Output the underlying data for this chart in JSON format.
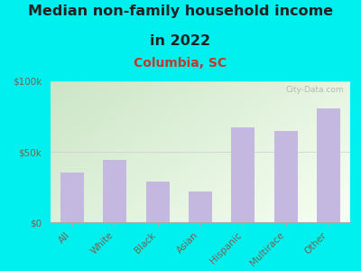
{
  "title_line1": "Median non-family household income",
  "title_line2": "in 2022",
  "subtitle": "Columbia, SC",
  "categories": [
    "All",
    "White",
    "Black",
    "Asian",
    "Hispanic",
    "Multirace",
    "Other"
  ],
  "values": [
    35000,
    44000,
    29000,
    22000,
    67000,
    65000,
    81000
  ],
  "bar_color": "#c5b8e0",
  "background_outer": "#00f0f0",
  "plot_bg_top_left": "#c8dfc0",
  "plot_bg_bottom_right": "#f8fff0",
  "title_color": "#222222",
  "subtitle_color": "#c0392b",
  "axis_label_color": "#7a6050",
  "tick_color": "#7a6050",
  "ylim": [
    0,
    100000
  ],
  "yticks": [
    0,
    50000,
    100000
  ],
  "ytick_labels": [
    "$0",
    "$50k",
    "$100k"
  ],
  "title_fontsize": 11.5,
  "subtitle_fontsize": 10,
  "watermark": "City-Data.com"
}
